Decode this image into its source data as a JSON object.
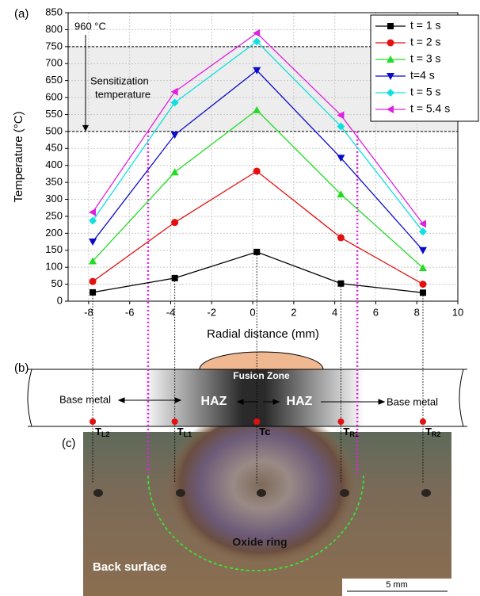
{
  "chart_data": {
    "type": "line",
    "panel_label": "(a)",
    "x_label": "Radial distance (mm)",
    "y_label": "Temperature (°C)",
    "x": [
      -7.8,
      -3.8,
      0.2,
      4.3,
      8.3
    ],
    "series": [
      {
        "name": "t = 1 s",
        "color": "#000000",
        "marker": "square",
        "values": [
          26,
          68,
          145,
          52,
          25
        ]
      },
      {
        "name": "t = 2 s",
        "color": "#e41010",
        "marker": "circle",
        "values": [
          58,
          232,
          383,
          187,
          50
        ]
      },
      {
        "name": "t = 3 s",
        "color": "#22dd22",
        "marker": "triangle-up",
        "values": [
          118,
          380,
          563,
          315,
          98
        ]
      },
      {
        "name": "t=4 s",
        "color": "#0a0acc",
        "marker": "triangle-down",
        "values": [
          175,
          490,
          680,
          422,
          150
        ]
      },
      {
        "name": "t = 5 s",
        "color": "#10e0e0",
        "marker": "diamond",
        "values": [
          237,
          585,
          765,
          515,
          205
        ]
      },
      {
        "name": "t = 5.4 s",
        "color": "#e020e0",
        "marker": "triangle-left",
        "values": [
          262,
          617,
          790,
          548,
          228
        ]
      }
    ],
    "xlim": [
      -9,
      10
    ],
    "ylim": [
      0,
      850
    ],
    "xticks": [
      -8,
      -6,
      -4,
      -2,
      0,
      2,
      4,
      6,
      8,
      10
    ],
    "yticks": [
      0,
      50,
      100,
      150,
      200,
      250,
      300,
      350,
      400,
      450,
      500,
      550,
      600,
      650,
      700,
      750,
      800,
      850
    ],
    "grid": true,
    "legend": "top-right",
    "band": [
      500,
      750
    ],
    "band_label_top": "960 °C",
    "band_label": [
      "Sensitization",
      "temperature"
    ],
    "haz_boundary_x": [
      -5.1,
      5.1
    ]
  },
  "panel_b": {
    "label": "(b)",
    "fusion_zone": "Fusion Zone",
    "left_base": "Base metal",
    "right_base": "Base metal",
    "haz_left": "HAZ",
    "haz_right": "HAZ",
    "points": [
      {
        "main": "T",
        "sub": "L2"
      },
      {
        "main": "T",
        "sub": "L1"
      },
      {
        "main": "Tc",
        "sub": ""
      },
      {
        "main": "T",
        "sub": "R1"
      },
      {
        "main": "T",
        "sub": "R2"
      }
    ]
  },
  "panel_c": {
    "label": "(c)",
    "ring": "Oxide ring",
    "surface": "Back surface",
    "scale": "5 mm"
  }
}
